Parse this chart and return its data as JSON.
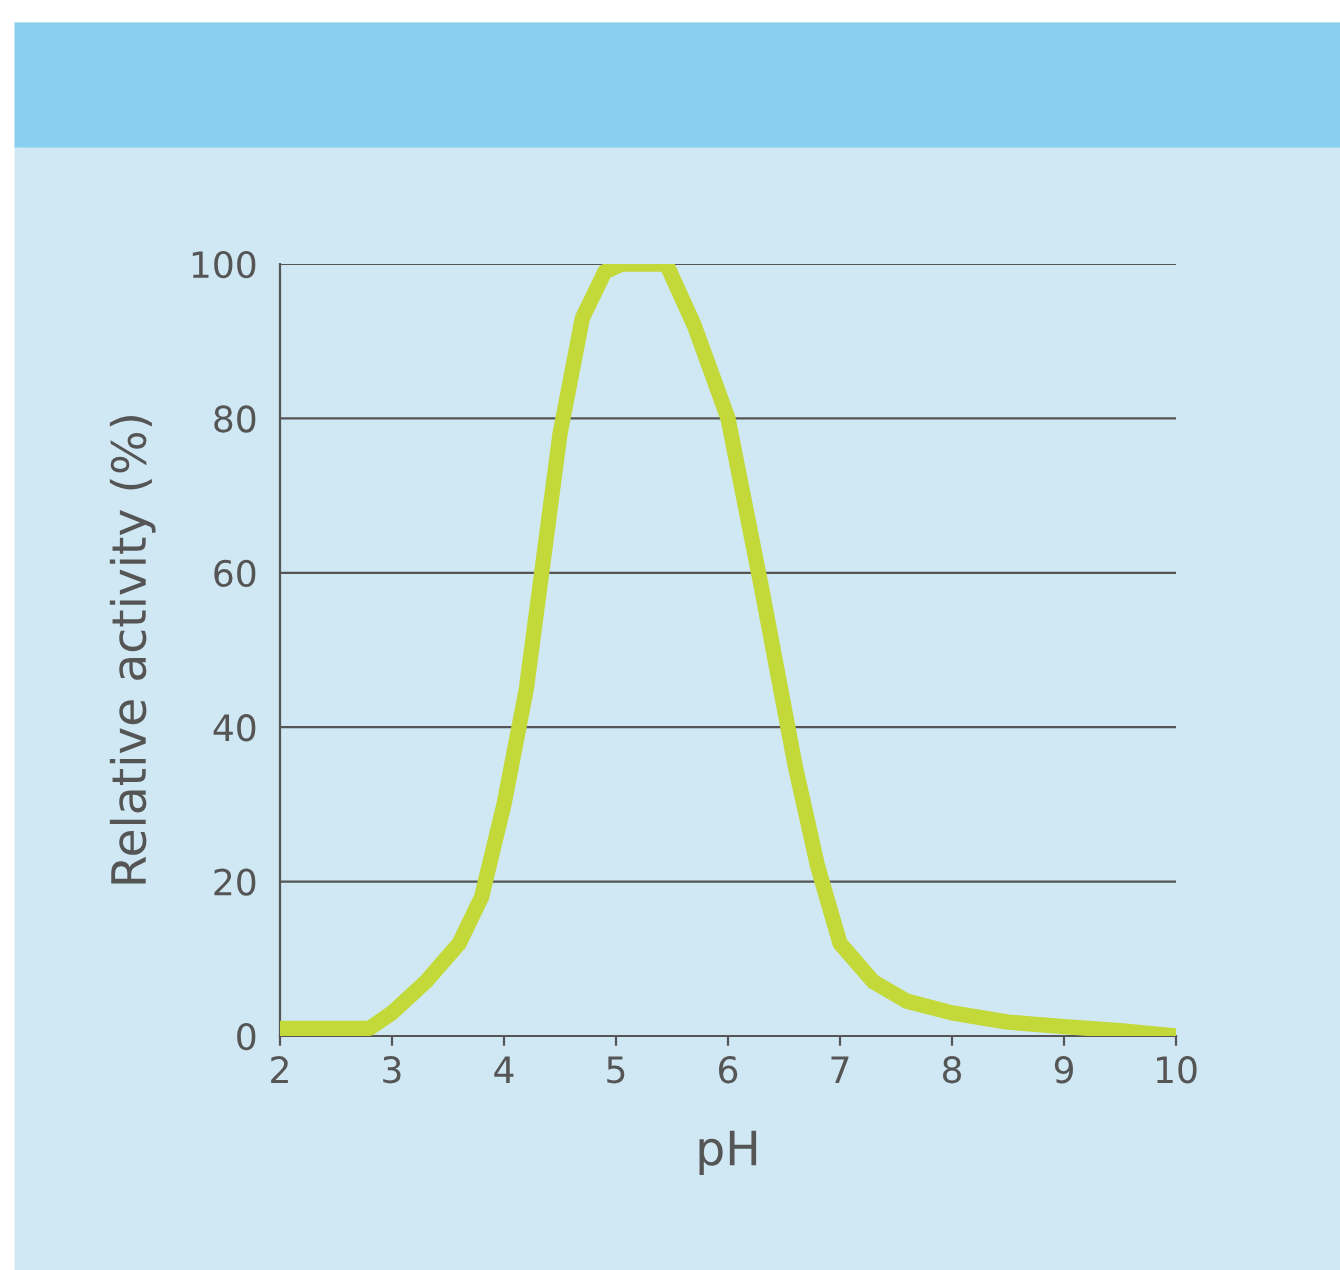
{
  "chart_data": {
    "type": "line",
    "xlabel": "pH",
    "ylabel": "Relative activity (%)",
    "x": [
      2,
      2.8,
      3.0,
      3.3,
      3.6,
      3.8,
      4.0,
      4.2,
      4.5,
      4.7,
      4.9,
      5.05,
      5.45,
      5.7,
      6.0,
      6.3,
      6.6,
      6.8,
      7.0,
      7.3,
      7.6,
      8.0,
      8.5,
      9.0,
      9.5,
      10
    ],
    "series": [
      {
        "color": "#c3d93a",
        "values": [
          1,
          1,
          3,
          7,
          12,
          18,
          30,
          45,
          78,
          93,
          99,
          100,
          100,
          92,
          80,
          58,
          35,
          22,
          12,
          7,
          4.5,
          3,
          1.8,
          1.2,
          0.7,
          0
        ]
      }
    ],
    "xlim": [
      2,
      10
    ],
    "xticks": [
      2,
      3,
      4,
      5,
      6,
      7,
      8,
      9,
      10
    ],
    "ylim": [
      0,
      100
    ],
    "yticks": [
      0,
      20,
      40,
      60,
      80,
      100
    ],
    "grid": "y",
    "marker": "none",
    "line_style": "solid"
  }
}
